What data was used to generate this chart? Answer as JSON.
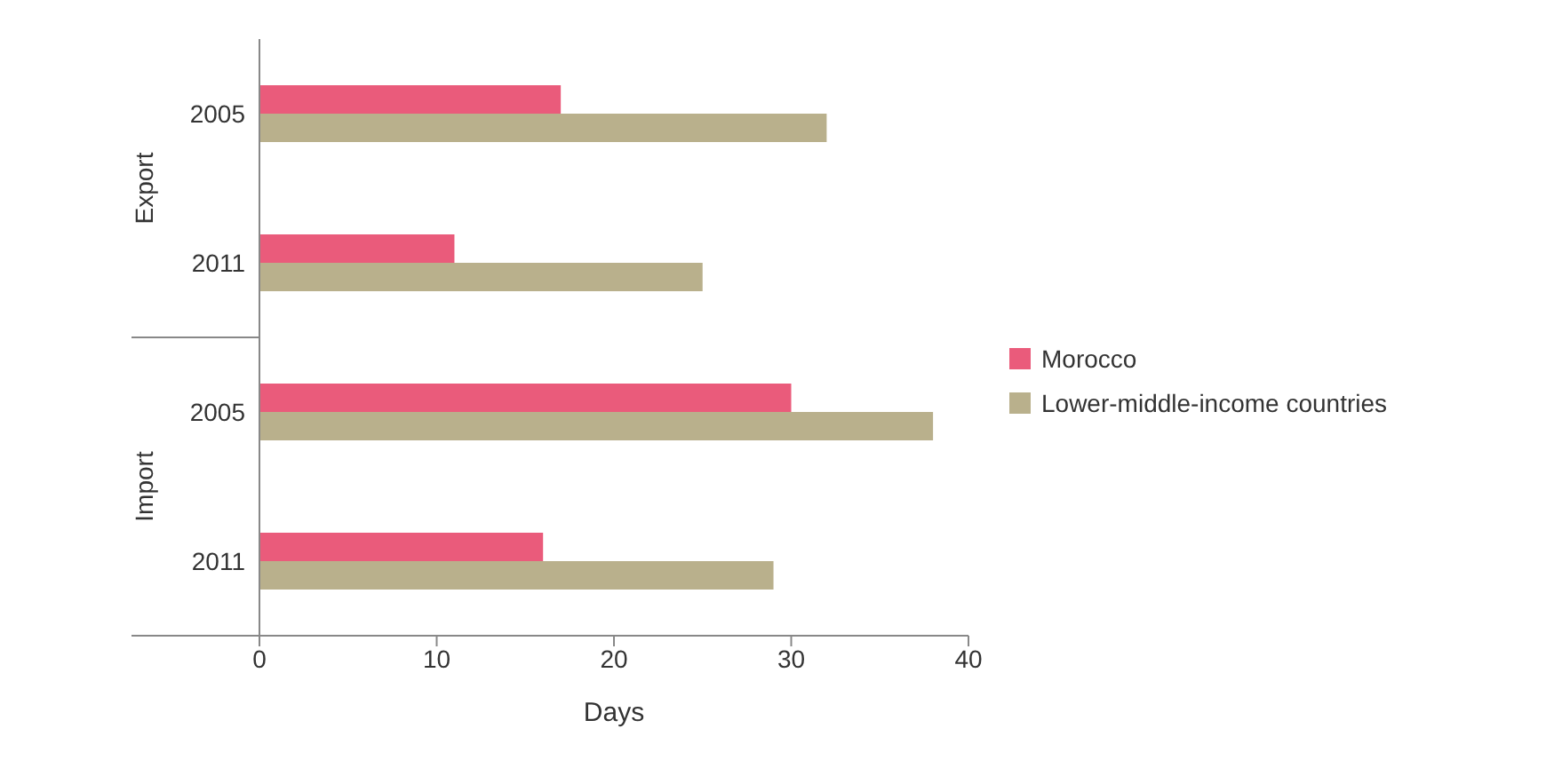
{
  "chart_data": {
    "type": "bar",
    "orientation": "horizontal",
    "xlabel": "Days",
    "categories": [
      "2005",
      "2011",
      "2005",
      "2011"
    ],
    "series": [
      {
        "name": "Morocco",
        "color": "#ea5b7b",
        "values": [
          17,
          11,
          30,
          16
        ]
      },
      {
        "name": "Lower-middle-income countries",
        "color": "#b9b08c",
        "values": [
          32,
          25,
          38,
          29
        ]
      }
    ],
    "xlim": [
      0,
      40
    ],
    "xticks": [
      0,
      10,
      20,
      30,
      40
    ],
    "grid": false,
    "legend": "right",
    "annotations": [
      "Export",
      "Import"
    ]
  }
}
